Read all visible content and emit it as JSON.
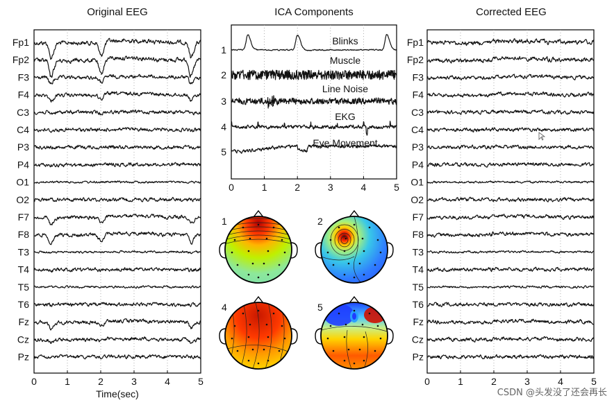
{
  "watermark": "CSDN @头发没了还会再长",
  "colors": {
    "trace": "#111111",
    "frame": "#000000"
  },
  "chart_data": [
    {
      "type": "line",
      "title": "Original EEG",
      "xlabel": "Time(sec)",
      "xlim": [
        0,
        5
      ],
      "xticks": [
        "0",
        "1",
        "2",
        "3",
        "4",
        "5"
      ],
      "channels": [
        "Fp1",
        "Fp2",
        "F3",
        "F4",
        "C3",
        "C4",
        "P3",
        "P4",
        "O1",
        "O2",
        "F7",
        "F8",
        "T3",
        "T4",
        "T5",
        "T6",
        "Fz",
        "Cz",
        "Pz"
      ],
      "artifact_events_sec": [
        0.5,
        2.0,
        4.7
      ],
      "note_series": "stacked EEG traces; large blink deflections at about 0.5, 2.0 and 4.7 s in frontal channels"
    },
    {
      "type": "line",
      "title": "ICA Components",
      "xlim": [
        0,
        5
      ],
      "xticks": [
        "0",
        "1",
        "2",
        "3",
        "4",
        "5"
      ],
      "components": [
        {
          "index": "1",
          "name": "Blinks"
        },
        {
          "index": "2",
          "name": "Muscle"
        },
        {
          "index": "3",
          "name": "Line Noise"
        },
        {
          "index": "4",
          "name": "EKG"
        },
        {
          "index": "5",
          "name": "Eye Movement"
        }
      ]
    },
    {
      "type": "heatmap",
      "title": "",
      "scalp_maps": [
        {
          "index": "1",
          "pattern": "frontal-red"
        },
        {
          "index": "2",
          "pattern": "left-frontal-focal"
        },
        {
          "index": "4",
          "pattern": "broad-red"
        },
        {
          "index": "5",
          "pattern": "frontal-bipolar"
        }
      ]
    },
    {
      "type": "line",
      "title": "Corrected EEG",
      "xlim": [
        0,
        5
      ],
      "xticks": [
        "0",
        "1",
        "2",
        "3",
        "4",
        "5"
      ],
      "channels": [
        "Fp1",
        "Fp2",
        "F3",
        "F4",
        "C3",
        "C4",
        "P3",
        "P4",
        "O1",
        "O2",
        "F7",
        "F8",
        "T3",
        "T4",
        "T5",
        "T6",
        "Fz",
        "Cz",
        "Pz"
      ]
    }
  ]
}
